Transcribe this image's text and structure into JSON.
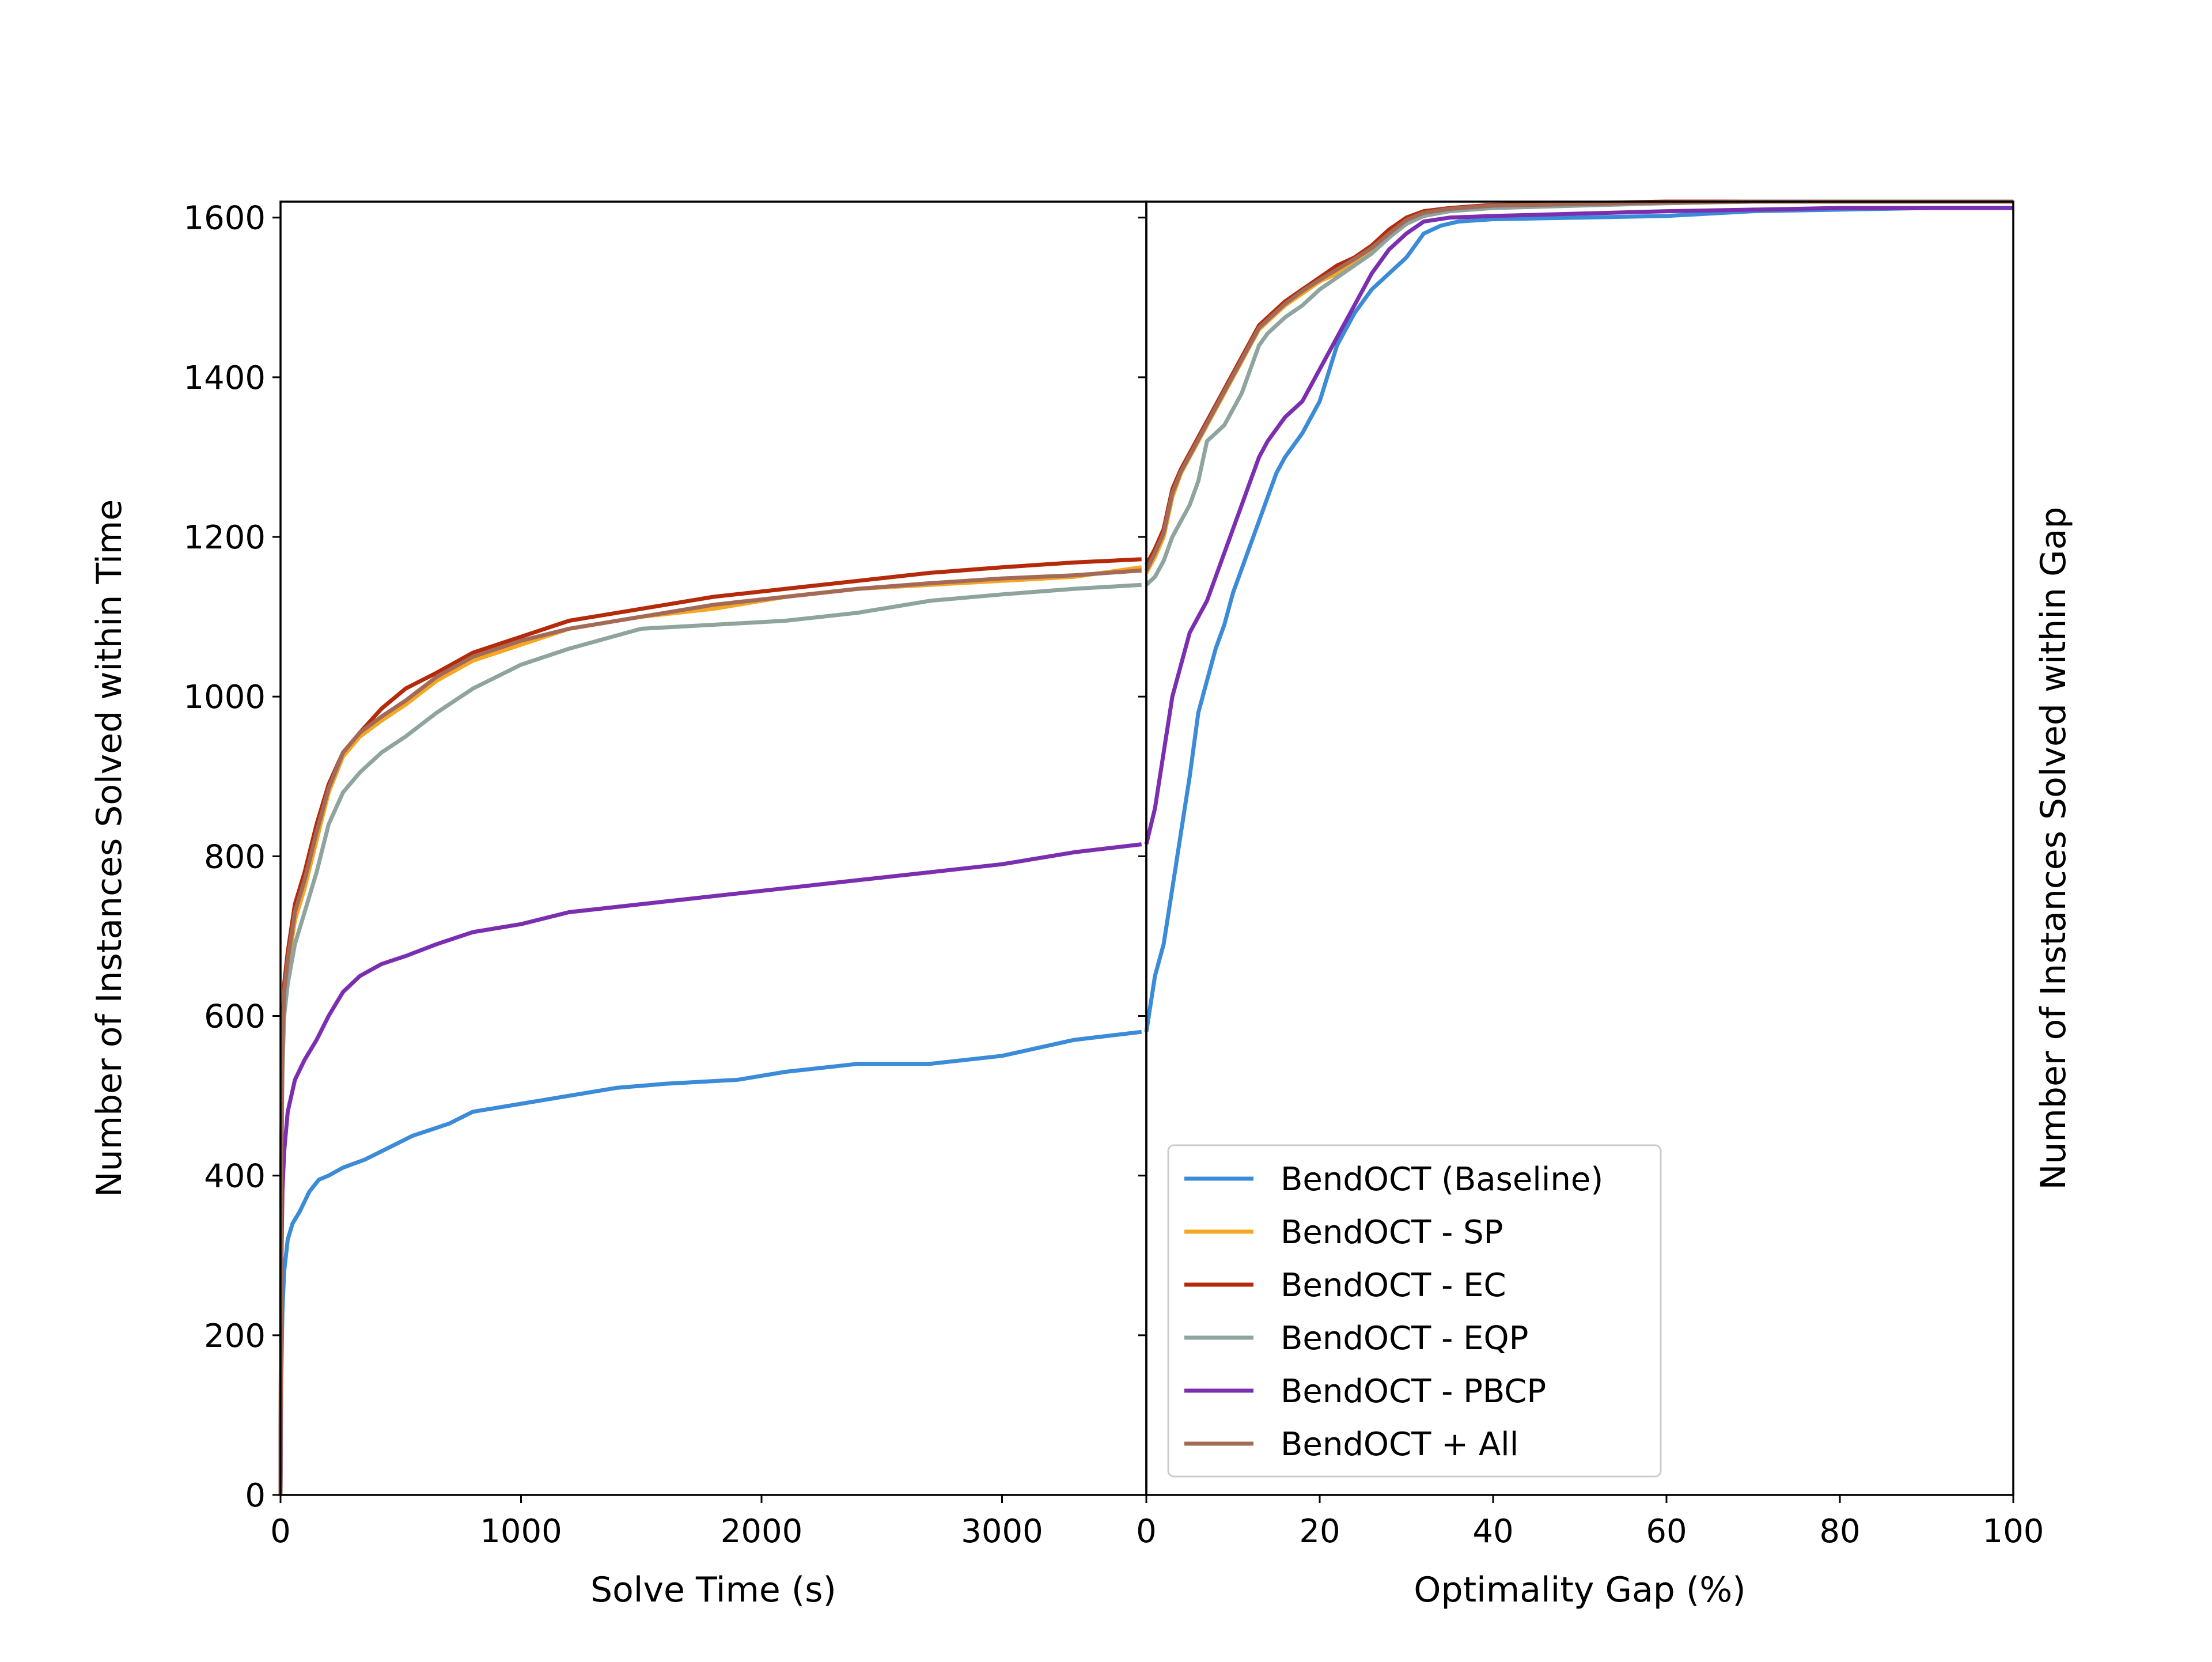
{
  "chart_data": [
    {
      "type": "line",
      "id": "left",
      "xlabel": "Solve Time (s)",
      "ylabel": "Number of Instances Solved within Time",
      "xlim": [
        0,
        3600
      ],
      "ylim": [
        0,
        1620
      ],
      "xticks": [
        0,
        1000,
        2000,
        3000
      ],
      "yticks": [
        0,
        200,
        400,
        600,
        800,
        1000,
        1200,
        1400,
        1600
      ],
      "series": [
        {
          "name": "BendOCT (Baseline)",
          "color": "#3b8bd9",
          "x": [
            0,
            3,
            8,
            15,
            30,
            50,
            80,
            120,
            160,
            200,
            260,
            350,
            450,
            550,
            700,
            800,
            1000,
            1200,
            1400,
            1600,
            1900,
            2100,
            2400,
            2700,
            3000,
            3300,
            3580
          ],
          "y": [
            0,
            150,
            230,
            280,
            320,
            340,
            355,
            380,
            395,
            400,
            410,
            420,
            435,
            450,
            465,
            480,
            490,
            500,
            510,
            515,
            520,
            530,
            540,
            540,
            550,
            570,
            580
          ]
        },
        {
          "name": "BendOCT - SP",
          "color": "#f5a623",
          "x": [
            0,
            3,
            8,
            15,
            30,
            60,
            100,
            150,
            200,
            260,
            330,
            420,
            520,
            650,
            800,
            1000,
            1200,
            1500,
            1800,
            2100,
            2400,
            2700,
            3000,
            3300,
            3580
          ],
          "y": [
            0,
            400,
            550,
            620,
            660,
            720,
            760,
            820,
            880,
            925,
            950,
            970,
            990,
            1020,
            1045,
            1065,
            1085,
            1100,
            1110,
            1125,
            1135,
            1140,
            1145,
            1150,
            1162
          ]
        },
        {
          "name": "BendOCT - EC",
          "color": "#b52a0a",
          "x": [
            0,
            3,
            8,
            15,
            30,
            60,
            100,
            150,
            200,
            260,
            330,
            420,
            520,
            650,
            800,
            1000,
            1200,
            1500,
            1800,
            2100,
            2400,
            2700,
            3000,
            3300,
            3580
          ],
          "y": [
            0,
            420,
            570,
            640,
            680,
            740,
            780,
            840,
            890,
            930,
            955,
            985,
            1010,
            1030,
            1055,
            1075,
            1095,
            1110,
            1125,
            1135,
            1145,
            1155,
            1162,
            1168,
            1172
          ]
        },
        {
          "name": "BendOCT - EQP",
          "color": "#8fa39f",
          "x": [
            0,
            3,
            8,
            15,
            30,
            60,
            100,
            150,
            200,
            260,
            330,
            420,
            520,
            650,
            800,
            1000,
            1200,
            1500,
            1800,
            2100,
            2400,
            2700,
            3000,
            3300,
            3580
          ],
          "y": [
            0,
            380,
            530,
            600,
            640,
            690,
            730,
            780,
            840,
            880,
            905,
            930,
            950,
            980,
            1010,
            1040,
            1060,
            1085,
            1090,
            1095,
            1105,
            1120,
            1128,
            1135,
            1140
          ]
        },
        {
          "name": "BendOCT - PBCP",
          "color": "#7b2fb0",
          "x": [
            0,
            3,
            8,
            15,
            30,
            60,
            100,
            150,
            200,
            260,
            330,
            420,
            520,
            650,
            800,
            1000,
            1200,
            1500,
            1800,
            2100,
            2400,
            2700,
            3000,
            3300,
            3580
          ],
          "y": [
            0,
            280,
            380,
            430,
            480,
            520,
            545,
            570,
            600,
            630,
            650,
            665,
            675,
            690,
            705,
            715,
            730,
            740,
            750,
            760,
            770,
            780,
            790,
            805,
            815
          ]
        },
        {
          "name": "BendOCT + All",
          "color": "#a46a58",
          "x": [
            0,
            3,
            8,
            15,
            30,
            60,
            100,
            150,
            200,
            260,
            330,
            420,
            520,
            650,
            800,
            1000,
            1200,
            1500,
            1800,
            2100,
            2400,
            2700,
            3000,
            3300,
            3580
          ],
          "y": [
            0,
            410,
            560,
            630,
            670,
            730,
            770,
            830,
            885,
            930,
            955,
            975,
            995,
            1025,
            1050,
            1070,
            1085,
            1100,
            1115,
            1125,
            1135,
            1142,
            1148,
            1152,
            1158
          ]
        }
      ]
    },
    {
      "type": "line",
      "id": "right",
      "xlabel": "Optimality Gap (%)",
      "ylabel": "Number of Instances Solved within Gap",
      "xlim": [
        0,
        100
      ],
      "ylim": [
        0,
        1620
      ],
      "xticks": [
        0,
        20,
        40,
        60,
        80,
        100
      ],
      "series": [
        {
          "name": "BendOCT (Baseline)",
          "color": "#3b8bd9",
          "x": [
            0,
            1,
            2,
            3,
            4,
            5,
            6,
            7,
            8,
            9,
            10,
            11,
            12,
            13,
            14,
            15,
            16,
            18,
            20,
            22,
            24,
            26,
            28,
            30,
            32,
            34,
            36,
            40,
            50,
            60,
            70,
            80,
            90,
            100
          ],
          "y": [
            580,
            650,
            690,
            760,
            830,
            900,
            980,
            1020,
            1060,
            1090,
            1130,
            1160,
            1190,
            1220,
            1250,
            1280,
            1300,
            1330,
            1370,
            1440,
            1480,
            1510,
            1530,
            1550,
            1580,
            1590,
            1595,
            1598,
            1600,
            1602,
            1608,
            1610,
            1612,
            1612
          ]
        },
        {
          "name": "BendOCT - SP",
          "color": "#f5a623",
          "x": [
            0,
            1,
            2,
            3,
            4,
            5,
            6,
            7,
            8,
            9,
            10,
            11,
            12,
            13,
            14,
            16,
            18,
            20,
            22,
            24,
            26,
            28,
            30,
            32,
            35,
            40,
            50,
            60,
            70,
            80,
            90,
            100
          ],
          "y": [
            1155,
            1175,
            1200,
            1250,
            1280,
            1300,
            1320,
            1340,
            1360,
            1380,
            1400,
            1420,
            1440,
            1460,
            1470,
            1490,
            1505,
            1520,
            1530,
            1545,
            1560,
            1575,
            1595,
            1605,
            1610,
            1615,
            1618,
            1620,
            1620,
            1620,
            1620,
            1620
          ]
        },
        {
          "name": "BendOCT - EC",
          "color": "#b52a0a",
          "x": [
            0,
            1,
            2,
            3,
            4,
            5,
            6,
            7,
            8,
            9,
            10,
            11,
            12,
            13,
            14,
            16,
            18,
            20,
            22,
            24,
            26,
            28,
            30,
            32,
            35,
            40,
            50,
            60,
            70,
            80,
            90,
            100
          ],
          "y": [
            1165,
            1185,
            1210,
            1260,
            1285,
            1305,
            1325,
            1345,
            1365,
            1385,
            1405,
            1425,
            1445,
            1465,
            1475,
            1495,
            1510,
            1525,
            1540,
            1550,
            1565,
            1585,
            1600,
            1608,
            1612,
            1616,
            1618,
            1620,
            1620,
            1620,
            1620,
            1620
          ]
        },
        {
          "name": "BendOCT - EQP",
          "color": "#8fa39f",
          "x": [
            0,
            1,
            2,
            3,
            4,
            5,
            6,
            7,
            8,
            9,
            10,
            11,
            12,
            13,
            14,
            16,
            18,
            20,
            22,
            24,
            26,
            28,
            30,
            32,
            35,
            40,
            50,
            60,
            70,
            80,
            90,
            100
          ],
          "y": [
            1140,
            1150,
            1170,
            1200,
            1220,
            1240,
            1270,
            1320,
            1330,
            1340,
            1360,
            1380,
            1410,
            1440,
            1455,
            1475,
            1490,
            1510,
            1525,
            1540,
            1555,
            1575,
            1592,
            1602,
            1608,
            1612,
            1615,
            1618,
            1620,
            1620,
            1620,
            1620
          ]
        },
        {
          "name": "BendOCT - PBCP",
          "color": "#7b2fb0",
          "x": [
            0,
            1,
            2,
            3,
            4,
            5,
            6,
            7,
            8,
            9,
            10,
            11,
            12,
            13,
            14,
            16,
            18,
            20,
            22,
            24,
            26,
            28,
            30,
            32,
            35,
            40,
            50,
            60,
            70,
            80,
            90,
            100
          ],
          "y": [
            815,
            860,
            930,
            1000,
            1040,
            1080,
            1100,
            1120,
            1150,
            1180,
            1210,
            1240,
            1270,
            1300,
            1320,
            1350,
            1370,
            1410,
            1450,
            1490,
            1530,
            1560,
            1580,
            1595,
            1600,
            1602,
            1605,
            1608,
            1610,
            1612,
            1612,
            1612
          ]
        },
        {
          "name": "BendOCT + All",
          "color": "#a46a58",
          "x": [
            0,
            1,
            2,
            3,
            4,
            5,
            6,
            7,
            8,
            9,
            10,
            11,
            12,
            13,
            14,
            16,
            18,
            20,
            22,
            24,
            26,
            28,
            30,
            32,
            35,
            40,
            50,
            60,
            70,
            80,
            90,
            100
          ],
          "y": [
            1158,
            1180,
            1205,
            1255,
            1282,
            1302,
            1322,
            1342,
            1362,
            1382,
            1402,
            1422,
            1442,
            1462,
            1472,
            1492,
            1508,
            1522,
            1535,
            1548,
            1562,
            1580,
            1597,
            1606,
            1611,
            1615,
            1617,
            1619,
            1620,
            1620,
            1620,
            1620
          ]
        }
      ]
    }
  ],
  "legend": {
    "placement": "lower-left of right panel",
    "entries": [
      "BendOCT (Baseline)",
      "BendOCT - SP",
      "BendOCT - EC",
      "BendOCT - EQP",
      "BendOCT - PBCP",
      "BendOCT + All"
    ]
  }
}
